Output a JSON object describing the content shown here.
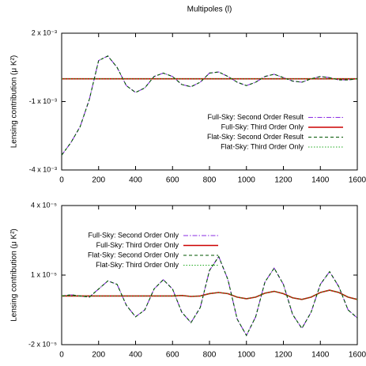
{
  "chart_data": [
    {
      "type": "line",
      "title": "Multipoles (l)",
      "ylabel": "Lensing contribution (μ K²)",
      "x": [
        0,
        50,
        100,
        150,
        200,
        250,
        300,
        350,
        400,
        450,
        500,
        550,
        600,
        650,
        700,
        750,
        800,
        850,
        900,
        950,
        1000,
        1050,
        1100,
        1150,
        1200,
        1250,
        1300,
        1350,
        1400,
        1450,
        1500,
        1550,
        1600
      ],
      "xlim": [
        0,
        1600
      ],
      "xticks": [
        0,
        200,
        400,
        600,
        800,
        1000,
        1200,
        1400,
        1600
      ],
      "ylim": [
        -0.004,
        0.002
      ],
      "yticks": [
        {
          "value": -0.004,
          "label": "-4 x 10⁻³"
        },
        {
          "value": -0.001,
          "label": "-1 x 10⁻³"
        },
        {
          "value": 0.002,
          "label": "2 x 10⁻³"
        }
      ],
      "legend": "center right",
      "series": [
        {
          "name": "Full-Sky: Second Order Result",
          "color": "#8a2be2",
          "dash": "dashdot",
          "values": [
            -0.00335,
            -0.0028,
            -0.0021,
            -0.0009,
            0.0008,
            0.001,
            0.0005,
            -0.0003,
            -0.0006,
            -0.0004,
            0.0001,
            0.00025,
            0.0001,
            -0.00025,
            -0.00035,
            -0.00015,
            0.00025,
            0.0003,
            0.0001,
            -0.00015,
            -0.0003,
            -0.00015,
            0.0001,
            0.0002,
            5e-05,
            -0.0001,
            -0.00015,
            0,
            0.0001,
            5e-05,
            -5e-05,
            -5e-05,
            0
          ]
        },
        {
          "name": "Full-Sky: Third Order Only",
          "color": "#cc0000",
          "dash": "solid",
          "values": [
            0,
            0,
            0,
            0,
            0,
            0,
            0,
            0,
            0,
            0,
            0,
            0,
            0,
            0,
            0,
            0,
            0,
            0,
            0,
            0,
            0,
            0,
            0,
            0,
            0,
            0,
            0,
            0,
            0,
            0,
            0,
            0,
            0
          ]
        },
        {
          "name": "Flat-Sky: Second Order Result",
          "color": "#005500",
          "dash": "dashed",
          "values": [
            -0.00335,
            -0.0028,
            -0.0021,
            -0.0009,
            0.0008,
            0.001,
            0.0005,
            -0.0003,
            -0.0006,
            -0.0004,
            0.0001,
            0.00025,
            0.0001,
            -0.00025,
            -0.00035,
            -0.00015,
            0.00025,
            0.0003,
            0.0001,
            -0.00015,
            -0.0003,
            -0.00015,
            0.0001,
            0.0002,
            5e-05,
            -0.0001,
            -0.00015,
            0,
            0.0001,
            5e-05,
            -5e-05,
            -5e-05,
            0
          ]
        },
        {
          "name": "Flat-Sky: Third Order Only",
          "color": "#22aa22",
          "dash": "dotted",
          "values": [
            0,
            0,
            0,
            0,
            0,
            0,
            0,
            0,
            0,
            0,
            0,
            0,
            0,
            0,
            0,
            0,
            0,
            0,
            0,
            0,
            0,
            0,
            0,
            0,
            0,
            0,
            0,
            0,
            0,
            0,
            0,
            0,
            0
          ]
        }
      ]
    },
    {
      "type": "line",
      "ylabel": "Lensing contribution (μ K²)",
      "x": [
        0,
        50,
        100,
        150,
        200,
        250,
        300,
        350,
        400,
        450,
        500,
        550,
        600,
        650,
        700,
        750,
        800,
        850,
        900,
        950,
        1000,
        1050,
        1100,
        1150,
        1200,
        1250,
        1300,
        1350,
        1400,
        1450,
        1500,
        1550,
        1600
      ],
      "xlim": [
        0,
        1600
      ],
      "xticks": [
        0,
        200,
        400,
        600,
        800,
        1000,
        1200,
        1400,
        1600
      ],
      "ylim": [
        -2e-05,
        4e-05
      ],
      "yticks": [
        {
          "value": -2e-05,
          "label": "-2 x 10⁻⁵"
        },
        {
          "value": 1e-05,
          "label": "1 x 10⁻⁵"
        },
        {
          "value": 4e-05,
          "label": "4 x 10⁻⁵"
        }
      ],
      "legend": "upper left",
      "series": [
        {
          "name": "Full-Sky: Second Order Only",
          "color": "#8a2be2",
          "dash": "dashdot",
          "values": [
            1e-06,
            1.5e-06,
            1e-06,
            5e-07,
            4e-06,
            7.5e-06,
            6e-06,
            -3e-06,
            -8e-06,
            -5e-06,
            4e-06,
            8e-06,
            4e-06,
            -6e-06,
            -1.05e-05,
            -4e-06,
            1.2e-05,
            1.8e-05,
            8e-06,
            -9e-06,
            -1.6e-05,
            -8e-06,
            7e-06,
            1.3e-05,
            6e-06,
            -7e-06,
            -1.3e-05,
            -6e-06,
            6e-06,
            1.15e-05,
            5e-06,
            -5e-06,
            -8.5e-06
          ]
        },
        {
          "name": "Full-Sky: Third Order Only",
          "color": "#cc0000",
          "dash": "solid",
          "values": [
            1e-06,
            1e-06,
            1e-06,
            1e-06,
            1e-06,
            1e-06,
            1e-06,
            1e-06,
            1e-06,
            1e-06,
            1e-06,
            1e-06,
            1e-06,
            1.2e-06,
            8e-07,
            1e-06,
            2e-06,
            2.5e-06,
            2e-06,
            5e-07,
            -2e-07,
            5e-07,
            2.2e-06,
            3e-06,
            2e-06,
            2e-07,
            -5e-07,
            5e-07,
            2.5e-06,
            3.5e-06,
            2.5e-06,
            5e-07,
            -5e-07
          ]
        },
        {
          "name": "Flat-Sky: Second Order Only",
          "color": "#005500",
          "dash": "dashed",
          "values": [
            1e-06,
            1.5e-06,
            1e-06,
            5e-07,
            4e-06,
            7.5e-06,
            6e-06,
            -3e-06,
            -8e-06,
            -5e-06,
            4e-06,
            8e-06,
            4e-06,
            -6e-06,
            -1.05e-05,
            -4e-06,
            1.2e-05,
            1.8e-05,
            8e-06,
            -9e-06,
            -1.6e-05,
            -8e-06,
            7e-06,
            1.3e-05,
            6e-06,
            -7e-06,
            -1.3e-05,
            -6e-06,
            6e-06,
            1.15e-05,
            5e-06,
            -5e-06,
            -8.5e-06
          ]
        },
        {
          "name": "Flat-Sky: Third Order Only",
          "color": "#22aa22",
          "dash": "dotted",
          "values": [
            1e-06,
            1e-06,
            1e-06,
            1e-06,
            1e-06,
            1e-06,
            1e-06,
            1e-06,
            1e-06,
            1e-06,
            1e-06,
            1e-06,
            1e-06,
            1.2e-06,
            8e-07,
            1e-06,
            2e-06,
            2.5e-06,
            2e-06,
            5e-07,
            -2e-07,
            5e-07,
            2.2e-06,
            3e-06,
            2e-06,
            2e-07,
            -5e-07,
            5e-07,
            2.5e-06,
            3.5e-06,
            2.5e-06,
            5e-07,
            -5e-07
          ]
        }
      ]
    }
  ]
}
